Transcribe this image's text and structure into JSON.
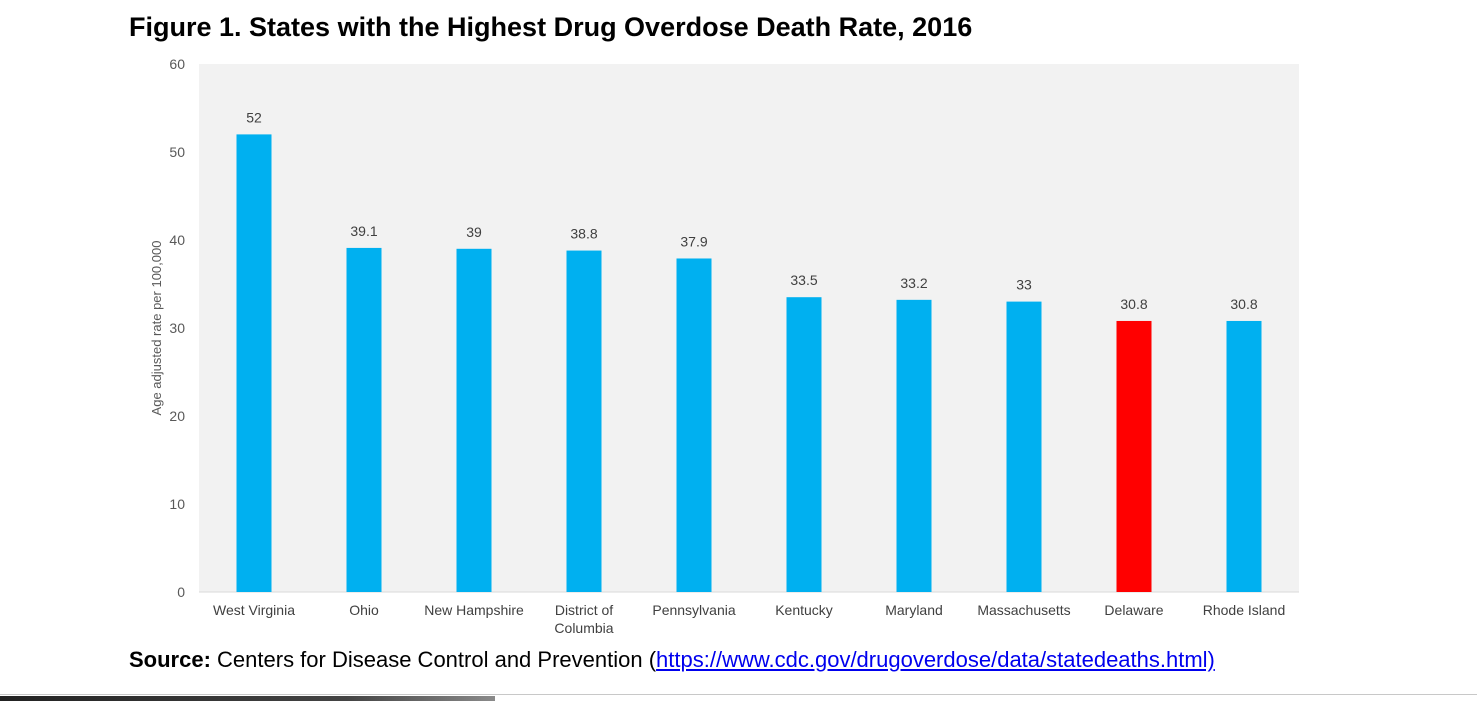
{
  "chart_data": {
    "type": "bar",
    "title": "Figure 1. States with the Highest Drug Overdose Death Rate, 2016",
    "xlabel": "",
    "ylabel": "Age adjusted rate per 100,000",
    "ylim": [
      0,
      60
    ],
    "yticks": [
      0,
      10,
      20,
      30,
      40,
      50,
      60
    ],
    "grid": false,
    "categories": [
      [
        "West Virginia"
      ],
      [
        "Ohio"
      ],
      [
        "New Hampshire"
      ],
      [
        "District of",
        "Columbia"
      ],
      [
        "Pennsylvania"
      ],
      [
        "Kentucky"
      ],
      [
        "Maryland"
      ],
      [
        "Massachusetts"
      ],
      [
        "Delaware"
      ],
      [
        "Rhode Island"
      ]
    ],
    "values": [
      52,
      39.1,
      39,
      38.8,
      37.9,
      33.5,
      33.2,
      33,
      30.8,
      30.8
    ],
    "data_labels": [
      "52",
      "39.1",
      "39",
      "38.8",
      "37.9",
      "33.5",
      "33.2",
      "33",
      "30.8",
      "30.8"
    ],
    "highlight_index": 8,
    "colors": {
      "bar": "#00b0f0",
      "highlight": "#ff0000",
      "plot_background": "#f2f2f2"
    }
  },
  "source": {
    "label": "Source:",
    "text": " Centers for Disease Control and Prevention (",
    "link": "https://www.cdc.gov/drugoverdose/data/statedeaths.html)"
  }
}
